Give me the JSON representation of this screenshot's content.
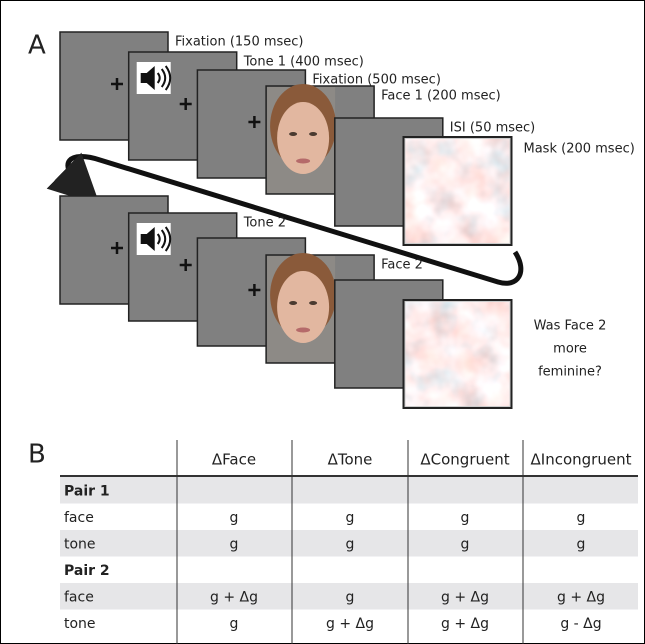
{
  "panel_a": {
    "label": "A",
    "sequence_1": [
      "Fixation (150 msec)",
      "Tone 1 (400 msec)",
      "Fixation (500 msec)",
      "Face 1 (200 msec)",
      "ISI (50 msec)",
      "Mask (200 msec)"
    ],
    "sequence_2": [
      "Tone 2",
      "Face 2"
    ],
    "question": [
      "Was Face 2",
      "more",
      "feminine?"
    ]
  },
  "panel_b": {
    "label": "B",
    "table": {
      "columns": [
        "ΔFace",
        "ΔTone",
        "ΔCongruent",
        "ΔIncongruent"
      ],
      "rows": [
        {
          "group": "Pair 1"
        },
        {
          "label": "face",
          "cells": [
            "g",
            "g",
            "g",
            "g"
          ]
        },
        {
          "label": "tone",
          "cells": [
            "g",
            "g",
            "g",
            "g"
          ]
        },
        {
          "group": "Pair 2"
        },
        {
          "label": "face",
          "cells": [
            "g +  Δg",
            "g",
            "g +  Δg",
            "g +  Δg"
          ]
        },
        {
          "label": "tone",
          "cells": [
            "g",
            "g +  Δg",
            "g +  Δg",
            "g -  Δg"
          ]
        }
      ]
    }
  }
}
